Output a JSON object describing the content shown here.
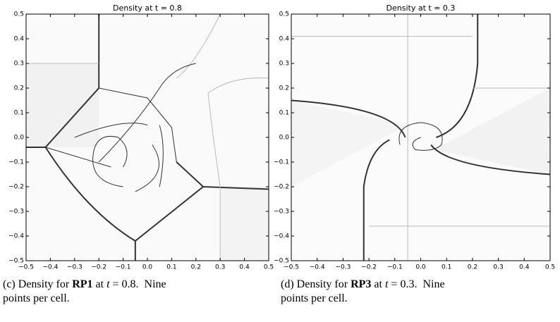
{
  "panels": [
    {
      "title": "Density at t = 0.8",
      "xlim": [
        -0.5,
        0.5
      ],
      "ylim": [
        -0.5,
        0.5
      ],
      "xticks": [
        {
          "value": -0.5,
          "label": "−0.5"
        },
        {
          "value": -0.4,
          "label": "−0.4"
        },
        {
          "value": -0.3,
          "label": "−0.3"
        },
        {
          "value": -0.2,
          "label": "−0.2"
        },
        {
          "value": -0.1,
          "label": "−0.1"
        },
        {
          "value": 0,
          "label": "0.0"
        },
        {
          "value": 0.1,
          "label": "0.1"
        },
        {
          "value": 0.2,
          "label": "0.2"
        },
        {
          "value": 0.3,
          "label": "0.3"
        },
        {
          "value": 0.4,
          "label": "0.4"
        },
        0.5
      ],
      "yticks": [
        {
          "value": -0.5,
          "label": "−0.5"
        },
        {
          "value": -0.4,
          "label": "−0.4"
        },
        {
          "value": -0.3,
          "label": "−0.3"
        },
        {
          "value": -0.2,
          "label": "−0.2"
        },
        {
          "value": -0.1,
          "label": "−0.1"
        },
        {
          "value": 0,
          "label": "0.0"
        },
        0.1,
        0.2,
        0.3,
        0.4,
        0.5
      ],
      "caption": [
        [
          {
            "text": "(c) Density for "
          },
          {
            "text": "RP1",
            "style": "bold"
          },
          {
            "text": " at "
          },
          {
            "text": "t",
            "style": "italic"
          },
          {
            "text": " = 0.8.  Nine"
          }
        ],
        [
          {
            "text": "points per cell."
          }
        ]
      ]
    },
    {
      "title": "Density at t = 0.3",
      "xlim": [
        -0.5,
        0.5
      ],
      "ylim": [
        -0.5,
        0.5
      ],
      "xticks": [
        {
          "value": -0.5,
          "label": "−0.5"
        },
        {
          "value": -0.4,
          "label": "−0.4"
        },
        {
          "value": -0.3,
          "label": "−0.3"
        },
        {
          "value": -0.2,
          "label": "−0.2"
        },
        {
          "value": -0.1,
          "label": "−0.1"
        },
        {
          "value": 0,
          "label": "0.0"
        },
        0.1,
        0.2,
        0.3,
        0.4,
        0.5
      ],
      "yticks": [
        {
          "value": -0.5,
          "label": "−0.5"
        },
        {
          "value": -0.4,
          "label": "−0.4"
        },
        {
          "value": -0.3,
          "label": "−0.3"
        },
        {
          "value": -0.2,
          "label": "−0.2"
        },
        {
          "value": -0.1,
          "label": "−0.1"
        },
        {
          "value": 0,
          "label": "0.0"
        },
        0.1,
        0.2,
        0.3,
        0.4,
        0.5
      ],
      "caption": [
        [
          {
            "text": "(d) Density for "
          },
          {
            "text": "RP3",
            "style": "bold"
          },
          {
            "text": " at "
          },
          {
            "text": "t",
            "style": "italic"
          },
          {
            "text": " = 0.3.  Nine"
          }
        ],
        [
          {
            "text": "points per cell."
          }
        ]
      ]
    }
  ]
}
